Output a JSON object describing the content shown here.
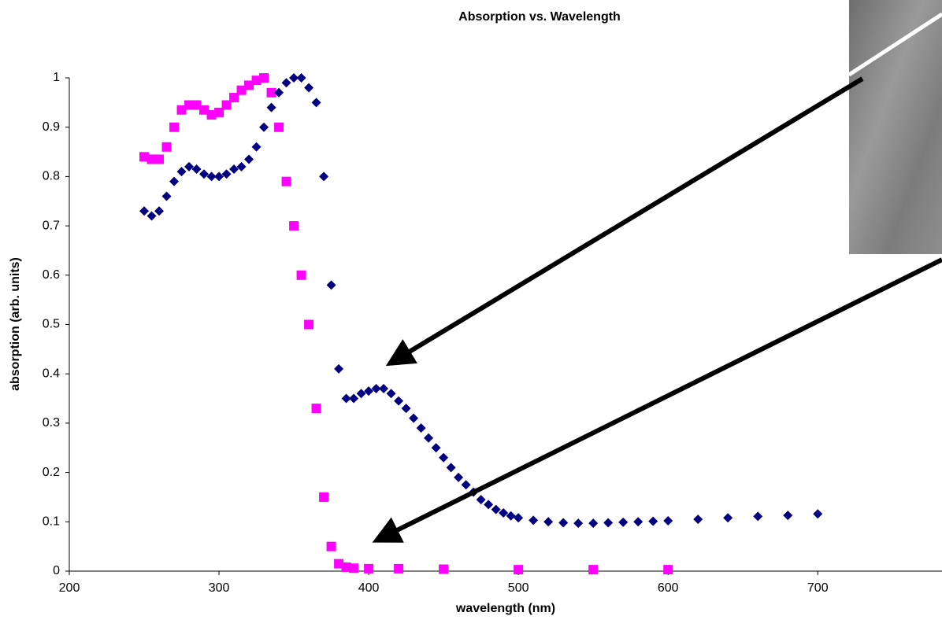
{
  "chart_data": {
    "type": "scatter",
    "title": "Absorption vs. Wavelength",
    "x_label": "wavelength (nm)",
    "y_label": "absorption (arb. units)",
    "xlim": [
      200,
      783
    ],
    "xticks": [
      200,
      300,
      400,
      500,
      600,
      700
    ],
    "ylim": [
      0,
      1
    ],
    "yticks": [
      0,
      0.1,
      0.2,
      0.3,
      0.4,
      0.5,
      0.6,
      0.7,
      0.8,
      0.9,
      1
    ],
    "grid": false,
    "series": [
      {
        "color": "#ff00ff",
        "marker": "square",
        "x": [
          250,
          255,
          260,
          265,
          270,
          275,
          280,
          285,
          290,
          295,
          300,
          305,
          310,
          315,
          320,
          325,
          330,
          335,
          340,
          345,
          350,
          355,
          360,
          365,
          370,
          375,
          380,
          385,
          390,
          400,
          420,
          450,
          500,
          550,
          600
        ],
        "values": [
          0.84,
          0.835,
          0.835,
          0.86,
          0.9,
          0.935,
          0.945,
          0.945,
          0.935,
          0.925,
          0.93,
          0.945,
          0.96,
          0.975,
          0.985,
          0.995,
          1.0,
          0.97,
          0.9,
          0.79,
          0.7,
          0.6,
          0.5,
          0.33,
          0.15,
          0.05,
          0.015,
          0.008,
          0.006,
          0.005,
          0.005,
          0.004,
          0.003,
          0.003,
          0.003
        ]
      },
      {
        "color": "#000080",
        "marker": "diamond",
        "x": [
          250,
          255,
          260,
          265,
          270,
          275,
          280,
          285,
          290,
          295,
          300,
          305,
          310,
          315,
          320,
          325,
          330,
          335,
          340,
          345,
          350,
          355,
          360,
          365,
          370,
          375,
          380,
          385,
          390,
          395,
          400,
          405,
          410,
          415,
          420,
          425,
          430,
          435,
          440,
          445,
          450,
          455,
          460,
          465,
          470,
          475,
          480,
          485,
          490,
          495,
          500,
          510,
          520,
          530,
          540,
          550,
          560,
          570,
          580,
          590,
          600,
          620,
          640,
          660,
          680,
          700
        ],
        "values": [
          0.73,
          0.72,
          0.73,
          0.76,
          0.79,
          0.81,
          0.82,
          0.815,
          0.805,
          0.8,
          0.8,
          0.805,
          0.815,
          0.82,
          0.835,
          0.86,
          0.9,
          0.94,
          0.97,
          0.99,
          1.0,
          1.0,
          0.98,
          0.95,
          0.8,
          0.58,
          0.41,
          0.35,
          0.35,
          0.36,
          0.365,
          0.37,
          0.37,
          0.36,
          0.345,
          0.33,
          0.31,
          0.29,
          0.27,
          0.25,
          0.23,
          0.21,
          0.19,
          0.175,
          0.16,
          0.145,
          0.135,
          0.125,
          0.118,
          0.112,
          0.108,
          0.103,
          0.1,
          0.098,
          0.097,
          0.097,
          0.098,
          0.099,
          0.1,
          0.101,
          0.102,
          0.105,
          0.108,
          0.111,
          0.113,
          0.116
        ]
      }
    ]
  }
}
